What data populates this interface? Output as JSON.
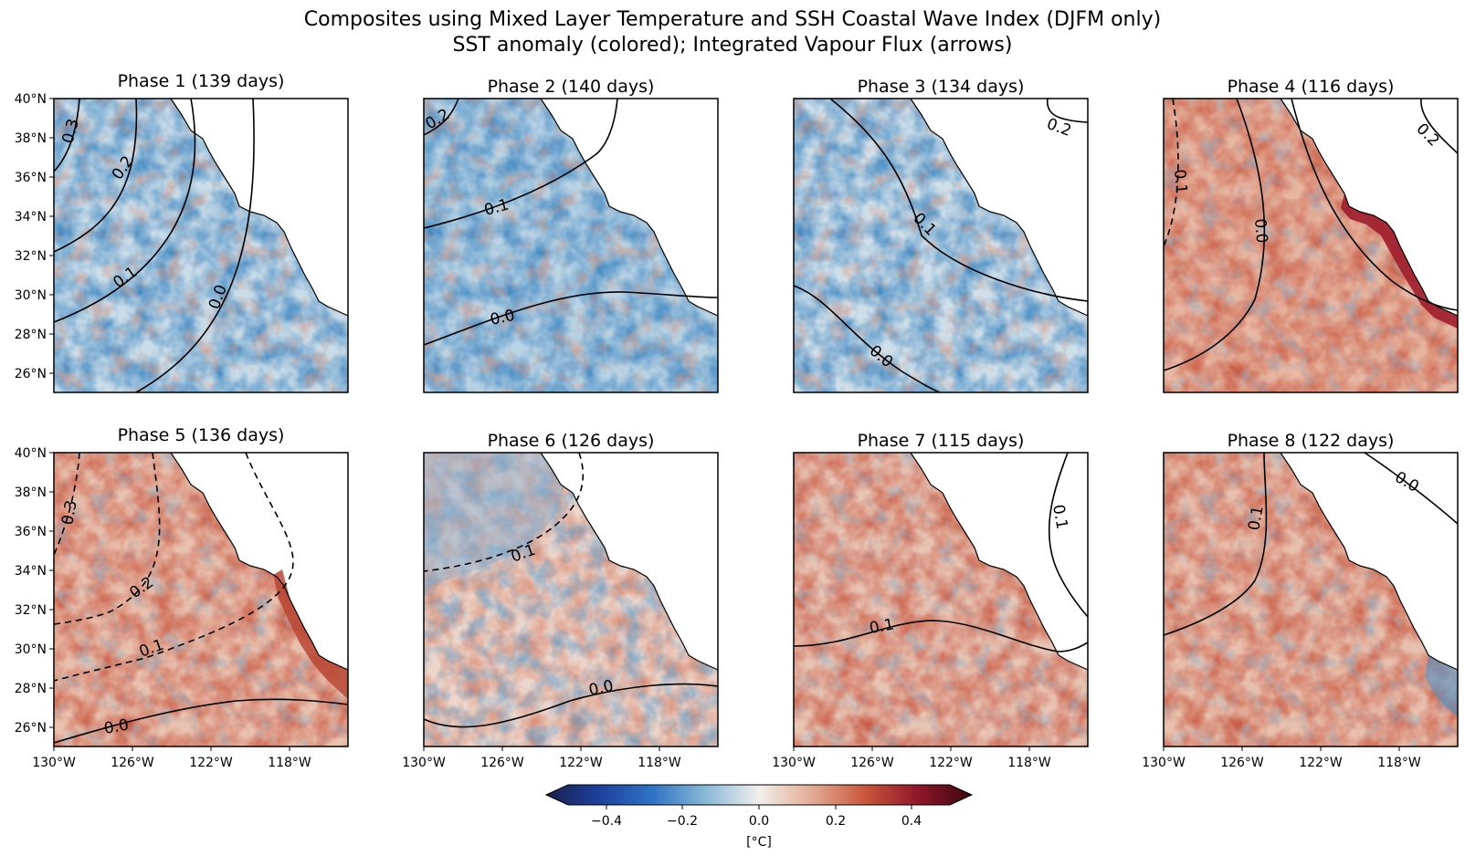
{
  "figure": {
    "title_line1": "Composites using Mixed Layer Temperature and SSH Coastal Wave Index (DJFM only)",
    "title_line2": "SST anomaly (colored); Integrated Vapour Flux (arrows)"
  },
  "axes": {
    "lat_labels": [
      "40°N",
      "38°N",
      "36°N",
      "34°N",
      "32°N",
      "30°N",
      "28°N",
      "26°N"
    ],
    "lat_values": [
      40,
      38,
      36,
      34,
      32,
      30,
      28,
      26
    ],
    "lon_labels": [
      "130°W",
      "126°W",
      "122°W",
      "118°W"
    ],
    "lon_values": [
      -130,
      -126,
      -122,
      -118
    ],
    "lat_range": [
      25,
      40
    ],
    "lon_range": [
      -130,
      -115
    ]
  },
  "panels": [
    {
      "title": "Phase 1 (139 days)",
      "tint": "cool"
    },
    {
      "title": "Phase 2 (140 days)",
      "tint": "cool"
    },
    {
      "title": "Phase 3 (134 days)",
      "tint": "cool"
    },
    {
      "title": "Phase 4 (116 days)",
      "tint": "warm"
    },
    {
      "title": "Phase 5 (136 days)",
      "tint": "warm"
    },
    {
      "title": "Phase 6 (126 days)",
      "tint": "mixed"
    },
    {
      "title": "Phase 7 (115 days)",
      "tint": "warm"
    },
    {
      "title": "Phase 8 (122 days)",
      "tint": "warm"
    }
  ],
  "contour_labels": {
    "p1": [
      "0.3",
      "0.2",
      "0.1",
      "0.0"
    ],
    "p2": [
      "0.2",
      "0.1",
      "0.0"
    ],
    "p3": [
      "0.2",
      "0.1",
      "0.0"
    ],
    "p4": [
      "0.2",
      "0.1",
      "0.0"
    ],
    "p5": [
      "0.3",
      "0.2",
      "0.1",
      "0.0"
    ],
    "p6": [
      "0.1",
      "0.0"
    ],
    "p7": [
      "0.1",
      "0.1"
    ],
    "p8": [
      "0.0",
      "0.1"
    ]
  },
  "colorbar": {
    "ticks": [
      "−0.4",
      "−0.2",
      "0.0",
      "0.2",
      "0.4"
    ],
    "tick_values": [
      -0.4,
      -0.2,
      0.0,
      0.2,
      0.4
    ],
    "range": [
      -0.5,
      0.5
    ],
    "label": "[°C]",
    "colors": [
      "#1b1f4f",
      "#1f5fbf",
      "#5d9ed1",
      "#c7dde8",
      "#f2eeeb",
      "#eac3b0",
      "#d4785e",
      "#b03a2e",
      "#7a0f1f",
      "#3b0510"
    ]
  }
}
